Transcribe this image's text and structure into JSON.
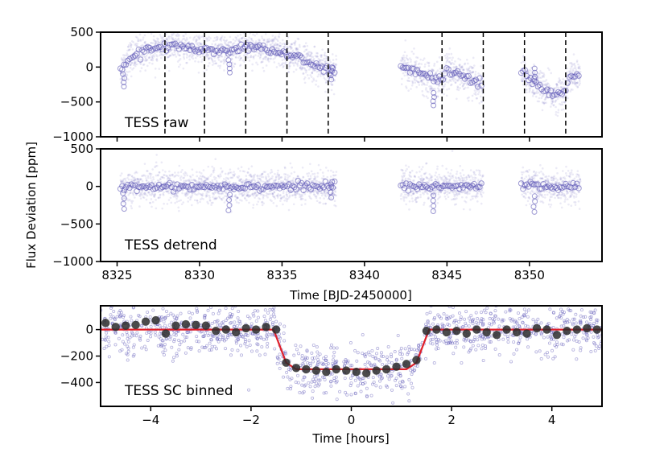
{
  "figure": {
    "ylabel_shared": "Flux Deviation [ppm]"
  },
  "chart_data": [
    {
      "type": "scatter",
      "title": "",
      "panel_label": "TESS raw",
      "xlabel": "",
      "ylabel": "Flux Deviation [ppm]",
      "xlim": [
        8324.0,
        8354.4
      ],
      "ylim": [
        -1000,
        500
      ],
      "yticks": [
        500,
        0,
        -500,
        -1000
      ],
      "ytick_labels": [
        "500",
        "0",
        "−500",
        "−1000"
      ],
      "xticks": [
        8325,
        8330,
        8335,
        8340,
        8345,
        8350
      ],
      "transit_markers": [
        8327.9,
        8330.3,
        8332.8,
        8335.3,
        8337.8,
        8344.7,
        8347.2,
        8349.7,
        8352.2
      ],
      "segments": [
        {
          "start": 8325.2,
          "end": 8338.3
        },
        {
          "start": 8342.2,
          "end": 8347.2
        },
        {
          "start": 8349.5,
          "end": 8353.1
        }
      ],
      "trend_points": [
        {
          "x": 8325.2,
          "y": -50
        },
        {
          "x": 8325.6,
          "y": 100
        },
        {
          "x": 8326.3,
          "y": 200
        },
        {
          "x": 8327.5,
          "y": 280
        },
        {
          "x": 8328.5,
          "y": 300
        },
        {
          "x": 8330.0,
          "y": 260
        },
        {
          "x": 8331.0,
          "y": 230
        },
        {
          "x": 8332.5,
          "y": 270
        },
        {
          "x": 8333.0,
          "y": 300
        },
        {
          "x": 8334.5,
          "y": 230
        },
        {
          "x": 8336.0,
          "y": 130
        },
        {
          "x": 8337.0,
          "y": 30
        },
        {
          "x": 8338.0,
          "y": -80
        },
        {
          "x": 8338.3,
          "y": -20
        },
        {
          "x": 8342.2,
          "y": 20
        },
        {
          "x": 8343.0,
          "y": -60
        },
        {
          "x": 8344.0,
          "y": -140
        },
        {
          "x": 8344.7,
          "y": -180
        },
        {
          "x": 8345.0,
          "y": -30
        },
        {
          "x": 8346.0,
          "y": -140
        },
        {
          "x": 8347.2,
          "y": -280
        },
        {
          "x": 8349.5,
          "y": -80
        },
        {
          "x": 8350.5,
          "y": -250
        },
        {
          "x": 8351.5,
          "y": -420
        },
        {
          "x": 8352.2,
          "y": -330
        },
        {
          "x": 8352.5,
          "y": -130
        },
        {
          "x": 8353.1,
          "y": -120
        }
      ],
      "dip_points": [
        {
          "x": 8325.4,
          "y": -280
        },
        {
          "x": 8331.8,
          "y": -80
        },
        {
          "x": 8338.0,
          "y": -180
        },
        {
          "x": 8344.2,
          "y": -550
        },
        {
          "x": 8350.3,
          "y": -200
        }
      ]
    },
    {
      "type": "scatter",
      "title": "",
      "panel_label": "TESS detrend",
      "xlabel": "Time [BJD-2450000]",
      "ylabel": "Flux Deviation [ppm]",
      "xlim": [
        8324.0,
        8354.4
      ],
      "ylim": [
        -1000,
        500
      ],
      "yticks": [
        500,
        0,
        -500,
        -1000
      ],
      "ytick_labels": [
        "500",
        "0",
        "−500",
        "−1000"
      ],
      "xticks": [
        8325,
        8330,
        8335,
        8340,
        8345,
        8350
      ],
      "xtick_labels": [
        "8325",
        "8330",
        "8335",
        "8340",
        "8345",
        "8350"
      ],
      "segments": [
        {
          "start": 8325.2,
          "end": 8338.3
        },
        {
          "start": 8342.2,
          "end": 8347.2
        },
        {
          "start": 8349.5,
          "end": 8353.1
        }
      ],
      "baseline": 0,
      "dip_points": [
        {
          "x": 8325.4,
          "y": -300
        },
        {
          "x": 8331.8,
          "y": -320
        },
        {
          "x": 8338.0,
          "y": -150
        },
        {
          "x": 8344.2,
          "y": -330
        },
        {
          "x": 8350.3,
          "y": -340
        }
      ]
    },
    {
      "type": "scatter",
      "title": "",
      "panel_label": "TESS SC binned",
      "xlabel": "Time [hours]",
      "ylabel": "",
      "xlim": [
        -5.0,
        5.0
      ],
      "ylim": [
        -580,
        180
      ],
      "yticks": [
        0,
        -200,
        -400
      ],
      "ytick_labels": [
        "0",
        "−200",
        "−400"
      ],
      "xticks": [
        -4,
        -2,
        0,
        2,
        4
      ],
      "xtick_labels": [
        "−4",
        "−2",
        "0",
        "2",
        "4"
      ],
      "model": {
        "x": [
          -5.0,
          -1.55,
          -1.3,
          -1.1,
          1.1,
          1.3,
          1.55,
          5.0
        ],
        "y": [
          0,
          0,
          -250,
          -300,
          -300,
          -250,
          0,
          0
        ]
      },
      "binned": {
        "x": [
          -4.9,
          -4.7,
          -4.5,
          -4.3,
          -4.1,
          -3.9,
          -3.7,
          -3.5,
          -3.3,
          -3.1,
          -2.9,
          -2.7,
          -2.5,
          -2.3,
          -2.1,
          -1.9,
          -1.7,
          -1.5,
          -1.3,
          -1.1,
          -0.9,
          -0.7,
          -0.5,
          -0.3,
          -0.1,
          0.1,
          0.3,
          0.5,
          0.7,
          0.9,
          1.1,
          1.3,
          1.5,
          1.7,
          1.9,
          2.1,
          2.3,
          2.5,
          2.7,
          2.9,
          3.1,
          3.3,
          3.5,
          3.7,
          3.9,
          4.1,
          4.3,
          4.5,
          4.7,
          4.9
        ],
        "y": [
          50,
          20,
          30,
          35,
          60,
          70,
          -30,
          30,
          40,
          35,
          30,
          -10,
          0,
          -20,
          10,
          0,
          20,
          0,
          -250,
          -290,
          -300,
          -310,
          -320,
          -300,
          -310,
          -320,
          -330,
          -310,
          -300,
          -280,
          -260,
          -230,
          -10,
          0,
          -20,
          -10,
          -30,
          0,
          -20,
          -40,
          0,
          -20,
          -30,
          10,
          0,
          -40,
          -10,
          0,
          10,
          0
        ]
      }
    }
  ]
}
